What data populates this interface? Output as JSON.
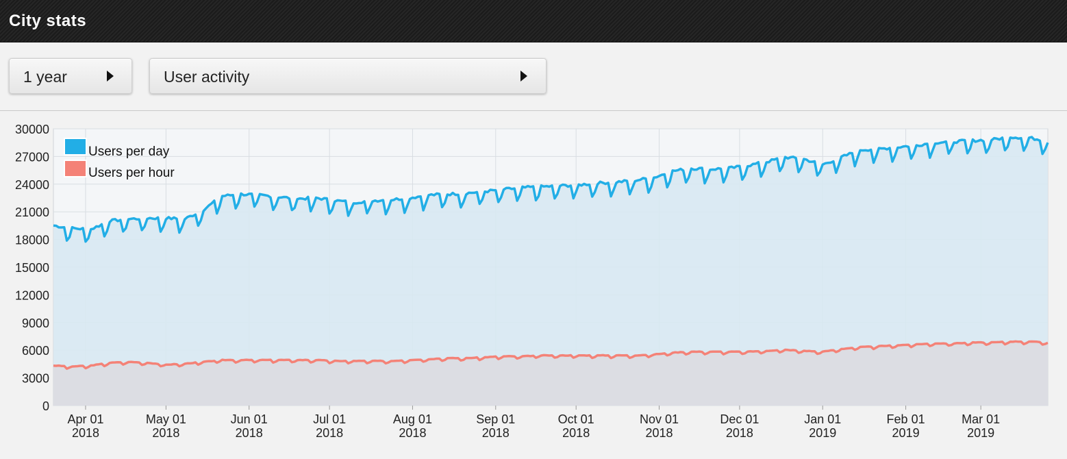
{
  "header": {
    "title": "City stats"
  },
  "controls": {
    "period": {
      "label": "1 year"
    },
    "metric": {
      "label": "User activity"
    }
  },
  "colors": {
    "day_line": "#22aee6",
    "day_fill": "#d8e9f2",
    "hour_line": "#f48277",
    "hour_fill": "#dcdde3",
    "grid": "#d8dde2"
  },
  "chart_data": {
    "type": "area",
    "title": "",
    "xlabel": "",
    "ylabel": "",
    "ylim": [
      0,
      30000
    ],
    "yticks": [
      0,
      3000,
      6000,
      9000,
      12000,
      15000,
      18000,
      21000,
      24000,
      27000,
      30000
    ],
    "xticks": [
      {
        "line1": "Apr 01",
        "line2": "2018",
        "date": "2018-04-01"
      },
      {
        "line1": "May 01",
        "line2": "2018",
        "date": "2018-05-01"
      },
      {
        "line1": "Jun 01",
        "line2": "2018",
        "date": "2018-06-01"
      },
      {
        "line1": "Jul 01",
        "line2": "2018",
        "date": "2018-07-01"
      },
      {
        "line1": "Aug 01",
        "line2": "2018",
        "date": "2018-08-01"
      },
      {
        "line1": "Sep 01",
        "line2": "2018",
        "date": "2018-09-01"
      },
      {
        "line1": "Oct 01",
        "line2": "2018",
        "date": "2018-10-01"
      },
      {
        "line1": "Nov 01",
        "line2": "2018",
        "date": "2018-11-01"
      },
      {
        "line1": "Dec 01",
        "line2": "2018",
        "date": "2018-12-01"
      },
      {
        "line1": "Jan 01",
        "line2": "2019",
        "date": "2019-01-01"
      },
      {
        "line1": "Feb 01",
        "line2": "2019",
        "date": "2019-02-01"
      },
      {
        "line1": "Mar 01",
        "line2": "2019",
        "date": "2019-03-01"
      }
    ],
    "grid": true,
    "legend": "top-left",
    "x": [
      "2018-03-20",
      "2018-03-27",
      "2018-04-03",
      "2018-04-10",
      "2018-04-17",
      "2018-04-24",
      "2018-05-01",
      "2018-05-08",
      "2018-05-15",
      "2018-05-22",
      "2018-05-29",
      "2018-06-05",
      "2018-06-12",
      "2018-06-19",
      "2018-06-26",
      "2018-07-03",
      "2018-07-10",
      "2018-07-17",
      "2018-07-24",
      "2018-07-31",
      "2018-08-07",
      "2018-08-14",
      "2018-08-21",
      "2018-08-28",
      "2018-09-04",
      "2018-09-11",
      "2018-09-18",
      "2018-09-25",
      "2018-10-02",
      "2018-10-09",
      "2018-10-16",
      "2018-10-23",
      "2018-10-30",
      "2018-11-06",
      "2018-11-13",
      "2018-11-20",
      "2018-11-27",
      "2018-12-04",
      "2018-12-11",
      "2018-12-18",
      "2018-12-25",
      "2019-01-01",
      "2019-01-08",
      "2019-01-15",
      "2019-01-22",
      "2019-01-29",
      "2019-02-05",
      "2019-02-12",
      "2019-02-19",
      "2019-02-26",
      "2019-03-05",
      "2019-03-12",
      "2019-03-19",
      "2019-03-26"
    ],
    "series": [
      {
        "name": "Users per day",
        "values": [
          19300,
          19000,
          18900,
          19800,
          20000,
          20100,
          20100,
          20000,
          21000,
          22500,
          22700,
          22600,
          22400,
          22200,
          22300,
          22000,
          21800,
          22000,
          22100,
          22300,
          22600,
          22700,
          22800,
          23000,
          23200,
          23400,
          23500,
          23600,
          23700,
          23900,
          24000,
          24200,
          24500,
          25200,
          25500,
          25400,
          25500,
          25800,
          26200,
          26700,
          26500,
          25900,
          26700,
          27500,
          27600,
          27800,
          28000,
          28300,
          28400,
          28500,
          28600,
          28900,
          28800,
          28500
        ]
      },
      {
        "name": "Users per hour",
        "values": [
          4300,
          4200,
          4300,
          4600,
          4700,
          4600,
          4400,
          4500,
          4700,
          4900,
          4900,
          4900,
          4900,
          4900,
          4900,
          4800,
          4800,
          4800,
          4800,
          4900,
          5000,
          5100,
          5100,
          5200,
          5300,
          5300,
          5400,
          5400,
          5400,
          5400,
          5400,
          5400,
          5500,
          5700,
          5800,
          5800,
          5800,
          5800,
          5900,
          6000,
          5900,
          5800,
          6100,
          6300,
          6400,
          6500,
          6600,
          6700,
          6700,
          6800,
          6800,
          6900,
          6900,
          6800
        ]
      }
    ]
  }
}
